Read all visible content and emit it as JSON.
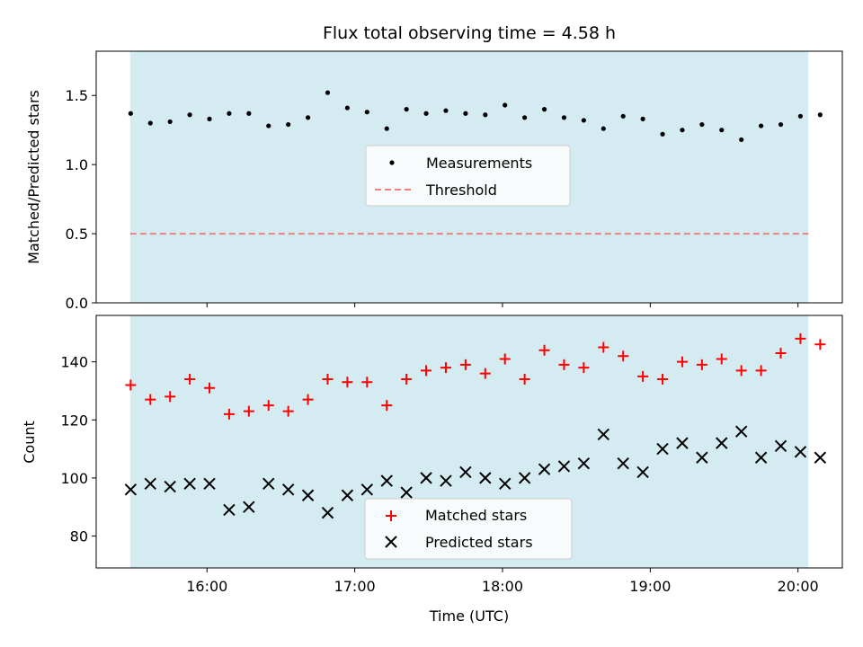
{
  "chart_data": [
    {
      "type": "scatter",
      "title": "Flux total observing time = 4.58 h",
      "ylabel": "Matched/Predicted stars",
      "ylim": [
        0,
        1.82
      ],
      "yticks": [
        0.0,
        0.5,
        1.0,
        1.5
      ],
      "ytick_labels": [
        "0.0",
        "0.5",
        "1.0",
        "1.5"
      ],
      "xlim_hours": [
        15.25,
        20.3
      ],
      "shaded_span_hours": [
        15.48,
        20.07
      ],
      "shade_color": "#d4ebf1",
      "legend": {
        "placement": "center",
        "entries": [
          "Measurements",
          "Threshold"
        ]
      },
      "threshold": {
        "name": "Threshold",
        "value": 0.5,
        "color": "#f08080"
      },
      "series": [
        {
          "name": "Measurements",
          "marker": "dot",
          "color": "#000000",
          "x": [
            "15:29",
            "15:37",
            "15:45",
            "15:53",
            "16:01",
            "16:09",
            "16:17",
            "16:25",
            "16:33",
            "16:41",
            "16:49",
            "16:57",
            "17:05",
            "17:13",
            "17:21",
            "17:29",
            "17:37",
            "17:45",
            "17:53",
            "18:01",
            "18:09",
            "18:17",
            "18:25",
            "18:33",
            "18:41",
            "18:49",
            "18:57",
            "19:05",
            "19:13",
            "19:21",
            "19:29",
            "19:37",
            "19:45",
            "19:53",
            "20:01",
            "20:09"
          ],
          "values": [
            1.37,
            1.3,
            1.31,
            1.36,
            1.33,
            1.37,
            1.37,
            1.28,
            1.29,
            1.34,
            1.52,
            1.41,
            1.38,
            1.26,
            1.4,
            1.37,
            1.39,
            1.37,
            1.36,
            1.43,
            1.34,
            1.4,
            1.34,
            1.32,
            1.26,
            1.35,
            1.33,
            1.22,
            1.25,
            1.29,
            1.25,
            1.18,
            1.28,
            1.29,
            1.35,
            1.36
          ]
        }
      ]
    },
    {
      "type": "scatter",
      "title": "",
      "xlabel": "Time (UTC)",
      "ylabel": "Count",
      "ylim": [
        69,
        156
      ],
      "yticks": [
        80,
        100,
        120,
        140
      ],
      "ytick_labels": [
        "80",
        "100",
        "120",
        "140"
      ],
      "xticks_hours": [
        16,
        17,
        18,
        19,
        20
      ],
      "xtick_labels": [
        "16:00",
        "17:00",
        "18:00",
        "19:00",
        "20:00"
      ],
      "xlim_hours": [
        15.25,
        20.3
      ],
      "shaded_span_hours": [
        15.48,
        20.07
      ],
      "shade_color": "#d4ebf1",
      "legend": {
        "placement": "lower center",
        "entries": [
          "Matched stars",
          "Predicted stars"
        ]
      },
      "series": [
        {
          "name": "Matched stars",
          "marker": "plus",
          "color": "#ff0000",
          "x": [
            "15:29",
            "15:37",
            "15:45",
            "15:53",
            "16:01",
            "16:09",
            "16:17",
            "16:25",
            "16:33",
            "16:41",
            "16:49",
            "16:57",
            "17:05",
            "17:13",
            "17:21",
            "17:29",
            "17:37",
            "17:45",
            "17:53",
            "18:01",
            "18:09",
            "18:17",
            "18:25",
            "18:33",
            "18:41",
            "18:49",
            "18:57",
            "19:05",
            "19:13",
            "19:21",
            "19:29",
            "19:37",
            "19:45",
            "19:53",
            "20:01",
            "20:09"
          ],
          "values": [
            132,
            127,
            128,
            134,
            131,
            122,
            123,
            125,
            123,
            127,
            134,
            133,
            133,
            125,
            134,
            137,
            138,
            139,
            136,
            141,
            134,
            144,
            139,
            138,
            145,
            142,
            135,
            134,
            140,
            139,
            141,
            137,
            137,
            143,
            148,
            146
          ]
        },
        {
          "name": "Predicted stars",
          "marker": "x",
          "color": "#000000",
          "x": [
            "15:29",
            "15:37",
            "15:45",
            "15:53",
            "16:01",
            "16:09",
            "16:17",
            "16:25",
            "16:33",
            "16:41",
            "16:49",
            "16:57",
            "17:05",
            "17:13",
            "17:21",
            "17:29",
            "17:37",
            "17:45",
            "17:53",
            "18:01",
            "18:09",
            "18:17",
            "18:25",
            "18:33",
            "18:41",
            "18:49",
            "18:57",
            "19:05",
            "19:13",
            "19:21",
            "19:29",
            "19:37",
            "19:45",
            "19:53",
            "20:01",
            "20:09"
          ],
          "values": [
            96,
            98,
            97,
            98,
            98,
            89,
            90,
            98,
            96,
            94,
            88,
            94,
            96,
            99,
            95,
            100,
            99,
            102,
            100,
            98,
            100,
            103,
            104,
            105,
            115,
            105,
            102,
            110,
            112,
            107,
            112,
            116,
            107,
            111,
            109,
            107
          ]
        }
      ]
    }
  ]
}
